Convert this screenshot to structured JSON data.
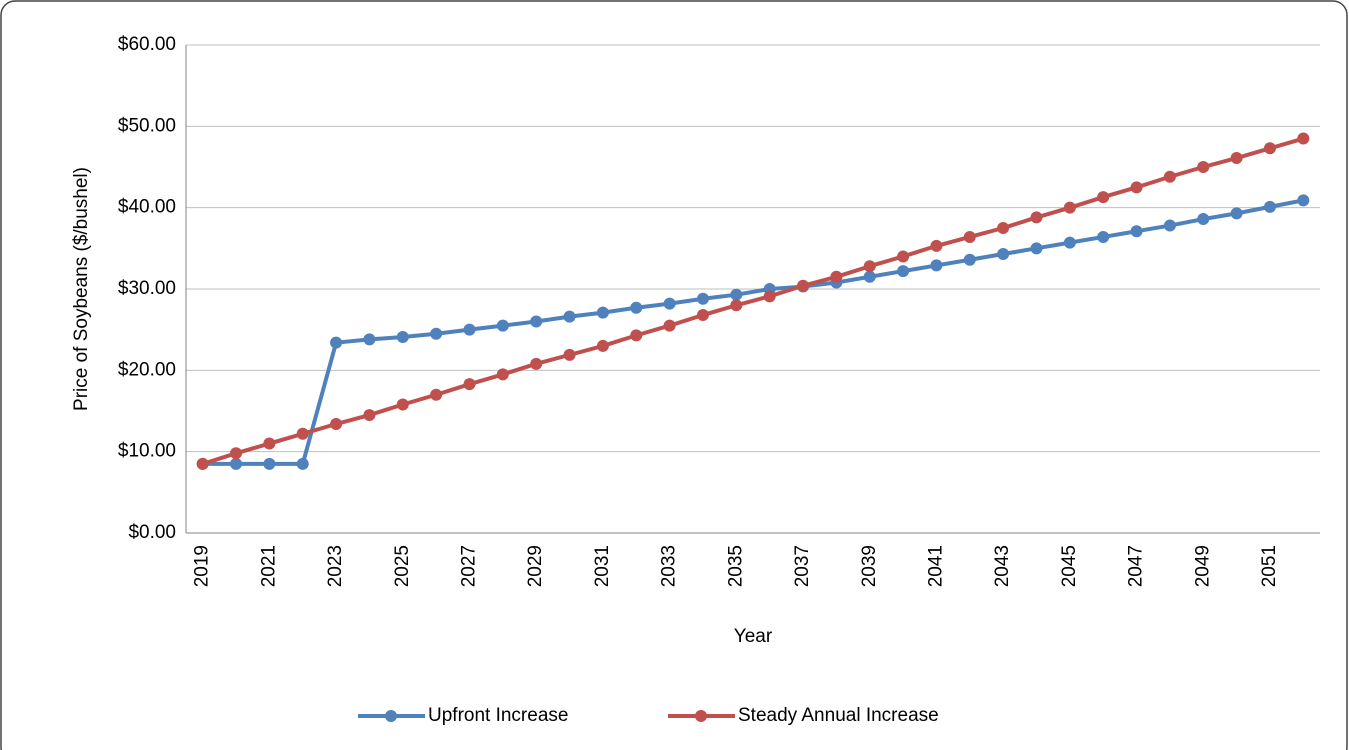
{
  "chart_data": {
    "type": "line",
    "x_label": "Year",
    "y_label": "Price of Soybeans ($/bushel)",
    "categories": [
      "2019",
      null,
      "2021",
      null,
      "2023",
      null,
      "2025",
      null,
      "2027",
      null,
      "2029",
      null,
      "2031",
      null,
      "2033",
      null,
      "2035",
      null,
      "2037",
      null,
      "2039",
      null,
      "2041",
      null,
      "2043",
      null,
      "2045",
      null,
      "2047",
      null,
      "2049",
      null,
      "2051",
      null
    ],
    "series": [
      {
        "name": "Upfront Increase",
        "color": "#4f81bd",
        "values": [
          8.5,
          8.5,
          8.5,
          8.5,
          23.4,
          23.8,
          24.1,
          24.5,
          25.0,
          25.5,
          26.0,
          26.6,
          27.1,
          27.7,
          28.2,
          28.8,
          29.3,
          30.0,
          30.3,
          30.8,
          31.5,
          32.2,
          32.9,
          33.6,
          34.3,
          35.0,
          35.7,
          36.4,
          37.1,
          37.8,
          38.6,
          39.3,
          40.1,
          40.9
        ]
      },
      {
        "name": "Steady Annual Increase",
        "color": "#c0504d",
        "values": [
          8.5,
          9.8,
          11.0,
          12.2,
          13.4,
          14.5,
          15.8,
          17.0,
          18.3,
          19.5,
          20.8,
          21.9,
          23.0,
          24.3,
          25.5,
          26.8,
          28.0,
          29.1,
          30.4,
          31.5,
          32.8,
          34.0,
          35.3,
          36.4,
          37.5,
          38.8,
          40.0,
          41.3,
          42.5,
          43.8,
          45.0,
          46.1,
          47.3,
          48.5
        ]
      }
    ],
    "ylim": [
      0,
      60
    ],
    "yticks": [
      {
        "value": 0,
        "label": "$0.00"
      },
      {
        "value": 10,
        "label": "$10.00"
      },
      {
        "value": 20,
        "label": "$20.00"
      },
      {
        "value": 30,
        "label": "$30.00"
      },
      {
        "value": 40,
        "label": "$40.00"
      },
      {
        "value": 50,
        "label": "$50.00"
      },
      {
        "value": 60,
        "label": "$60.00"
      }
    ],
    "grid": true,
    "markers": true,
    "legend": "bottom"
  }
}
